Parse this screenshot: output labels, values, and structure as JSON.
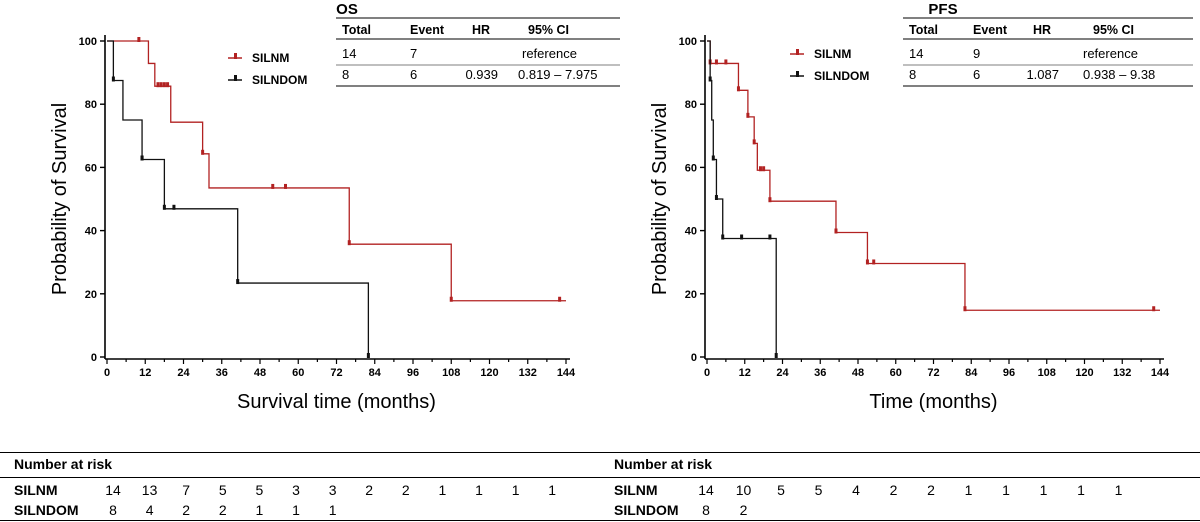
{
  "colors": {
    "silnm": "#b22222",
    "silndom": "#111111"
  },
  "chart_data": [
    {
      "type": "line",
      "title": "OS",
      "xlabel": "Survival time (months)",
      "ylabel": "Probability of Survival",
      "xlim": [
        0,
        144
      ],
      "ylim": [
        0,
        100
      ],
      "xticks": [
        "0",
        "6",
        "12",
        "18",
        "24",
        "30",
        "36",
        "42",
        "48",
        "54",
        "60",
        "66",
        "72",
        "78",
        "84",
        "90",
        "96",
        "102",
        "108",
        "114",
        "120",
        "126",
        "132",
        "138",
        "144"
      ],
      "xtick_labels": [
        "0",
        "12",
        "24",
        "36",
        "48",
        "60",
        "72",
        "84",
        "96",
        "108",
        "120",
        "132",
        "144"
      ],
      "yticks": [
        "0",
        "20",
        "40",
        "60",
        "80",
        "100"
      ],
      "legend": [
        "SILNM",
        "SILNDOM"
      ],
      "series": [
        {
          "name": "SILNM",
          "steps": [
            [
              0,
              100
            ],
            [
              13,
              92.9
            ],
            [
              15,
              85.7
            ],
            [
              20,
              74.3
            ],
            [
              30,
              64.3
            ],
            [
              32,
              53.5
            ],
            [
              76,
              35.7
            ],
            [
              108,
              17.8
            ],
            [
              144,
              17.8
            ]
          ],
          "censors": [
            [
              10,
              100
            ],
            [
              16,
              85.7
            ],
            [
              17,
              85.7
            ],
            [
              18,
              85.7
            ],
            [
              19,
              85.7
            ],
            [
              30,
              64.3
            ],
            [
              52,
              53.5
            ],
            [
              56,
              53.5
            ],
            [
              76,
              35.7
            ],
            [
              108,
              17.8
            ],
            [
              142,
              17.8
            ]
          ]
        },
        {
          "name": "SILNDOM",
          "steps": [
            [
              0,
              100
            ],
            [
              2,
              87.5
            ],
            [
              5,
              75
            ],
            [
              11,
              62.5
            ],
            [
              18,
              46.9
            ],
            [
              41,
              23.4
            ],
            [
              82,
              0
            ],
            [
              82,
              0
            ]
          ],
          "censors": [
            [
              2,
              87.5
            ],
            [
              11,
              62.5
            ],
            [
              11,
              62.5
            ],
            [
              18,
              46.9
            ],
            [
              21,
              46.9
            ],
            [
              41,
              23.4
            ],
            [
              82,
              0
            ]
          ]
        }
      ],
      "table": {
        "columns": [
          "Total",
          "Event",
          "HR",
          "95% CI"
        ],
        "rows": [
          [
            "14",
            "7",
            "",
            "reference"
          ],
          [
            "8",
            "6",
            "0.939",
            "0.819 – 7.975"
          ]
        ]
      }
    },
    {
      "type": "line",
      "title": "PFS",
      "xlabel": "Time (months)",
      "ylabel": "Probability of Survival",
      "xlim": [
        0,
        144
      ],
      "ylim": [
        0,
        100
      ],
      "xticks": [
        "0",
        "6",
        "12",
        "18",
        "24",
        "30",
        "36",
        "42",
        "48",
        "54",
        "60",
        "66",
        "72",
        "78",
        "84",
        "90",
        "96",
        "102",
        "108",
        "114",
        "120",
        "126",
        "132",
        "138",
        "144"
      ],
      "xtick_labels": [
        "0",
        "12",
        "24",
        "36",
        "48",
        "60",
        "72",
        "84",
        "96",
        "108",
        "120",
        "132",
        "144"
      ],
      "yticks": [
        "0",
        "20",
        "40",
        "60",
        "80",
        "100"
      ],
      "legend": [
        "SILNM",
        "SILNDOM"
      ],
      "series": [
        {
          "name": "SILNM",
          "steps": [
            [
              0,
              100
            ],
            [
              1,
              92.9
            ],
            [
              10,
              84.4
            ],
            [
              13,
              76
            ],
            [
              15,
              67.6
            ],
            [
              16,
              59.1
            ],
            [
              20,
              49.3
            ],
            [
              41,
              39.4
            ],
            [
              51,
              29.6
            ],
            [
              82,
              14.8
            ],
            [
              144,
              14.8
            ]
          ],
          "censors": [
            [
              1,
              92.9
            ],
            [
              3,
              92.9
            ],
            [
              6,
              92.9
            ],
            [
              10,
              84.4
            ],
            [
              13,
              76
            ],
            [
              15,
              67.6
            ],
            [
              17,
              59.1
            ],
            [
              18,
              59.1
            ],
            [
              20,
              49.3
            ],
            [
              41,
              39.4
            ],
            [
              51,
              29.6
            ],
            [
              53,
              29.6
            ],
            [
              82,
              14.8
            ],
            [
              142,
              14.8
            ]
          ]
        },
        {
          "name": "SILNDOM",
          "steps": [
            [
              0,
              100
            ],
            [
              1,
              87.5
            ],
            [
              1.5,
              75
            ],
            [
              2,
              62.5
            ],
            [
              3,
              50
            ],
            [
              5,
              37.5
            ],
            [
              22,
              0
            ],
            [
              22,
              0
            ]
          ],
          "censors": [
            [
              1,
              87.5
            ],
            [
              2,
              62.5
            ],
            [
              3,
              50
            ],
            [
              5,
              37.5
            ],
            [
              11,
              37.5
            ],
            [
              20,
              37.5
            ],
            [
              22,
              0
            ]
          ]
        }
      ],
      "table": {
        "columns": [
          "Total",
          "Event",
          "HR",
          "95% CI"
        ],
        "rows": [
          [
            "14",
            "9",
            "",
            "reference"
          ],
          [
            "8",
            "6",
            "1.087",
            "0.938 – 9.38"
          ]
        ]
      }
    }
  ],
  "risk_tables": [
    {
      "header": "Number at risk",
      "rows": [
        {
          "label": "SILNM",
          "values": [
            "14",
            "13",
            "7",
            "5",
            "5",
            "3",
            "3",
            "2",
            "2",
            "1",
            "1",
            "1",
            "1"
          ]
        },
        {
          "label": "SILNDOM",
          "values": [
            "8",
            "4",
            "2",
            "2",
            "1",
            "1",
            "1"
          ]
        }
      ]
    },
    {
      "header": "Number at risk",
      "rows": [
        {
          "label": "SILNM",
          "values": [
            "14",
            "10",
            "5",
            "5",
            "4",
            "2",
            "2",
            "1",
            "1",
            "1",
            "1",
            "1"
          ]
        },
        {
          "label": "SILNDOM",
          "values": [
            "8",
            "2"
          ]
        }
      ]
    }
  ]
}
